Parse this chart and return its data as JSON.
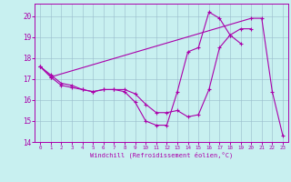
{
  "xlabel": "Windchill (Refroidissement éolien,°C)",
  "bg_color": "#c8f0f0",
  "line_color": "#aa00aa",
  "grid_color": "#99bbcc",
  "xlim": [
    -0.5,
    23.5
  ],
  "ylim": [
    14.0,
    20.6
  ],
  "xticks": [
    0,
    1,
    2,
    3,
    4,
    5,
    6,
    7,
    8,
    9,
    10,
    11,
    12,
    13,
    14,
    15,
    16,
    17,
    18,
    19,
    20,
    21,
    22,
    23
  ],
  "yticks": [
    14,
    15,
    16,
    17,
    18,
    19,
    20
  ],
  "series": [
    {
      "x": [
        0,
        1,
        2,
        3,
        4,
        5,
        6,
        7,
        8,
        9,
        10,
        11,
        12,
        13,
        14,
        15,
        16,
        17,
        18,
        19
      ],
      "y": [
        17.6,
        17.2,
        16.8,
        16.7,
        16.5,
        16.4,
        16.5,
        16.5,
        16.4,
        15.9,
        15.0,
        14.8,
        14.8,
        16.4,
        18.3,
        18.5,
        20.2,
        19.9,
        19.1,
        18.7
      ]
    },
    {
      "x": [
        0,
        1,
        2,
        3,
        4,
        5,
        6,
        7,
        8,
        9,
        10,
        11,
        12,
        13,
        14,
        15,
        16,
        17,
        18,
        19,
        20
      ],
      "y": [
        17.6,
        17.1,
        16.7,
        16.6,
        16.5,
        16.4,
        16.5,
        16.5,
        16.5,
        16.3,
        15.8,
        15.4,
        15.4,
        15.5,
        15.2,
        15.3,
        16.5,
        18.5,
        19.1,
        19.4,
        19.4
      ]
    },
    {
      "x": [
        0,
        1,
        20,
        21,
        22,
        23
      ],
      "y": [
        17.6,
        17.1,
        19.9,
        19.9,
        16.4,
        14.3
      ]
    }
  ]
}
